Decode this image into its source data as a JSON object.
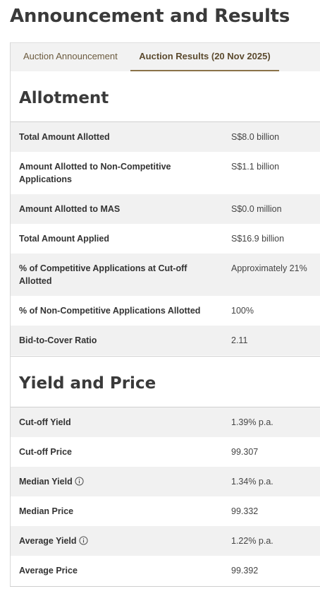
{
  "page": {
    "title": "Announcement and Results"
  },
  "tabs": [
    {
      "label": "Auction Announcement",
      "active": false
    },
    {
      "label": "Auction Results (20 Nov 2025)",
      "active": true
    }
  ],
  "allotment": {
    "heading": "Allotment",
    "rows": [
      {
        "label": "Total Amount Allotted",
        "value": "S$8.0 billion"
      },
      {
        "label": "Amount Allotted to Non-Competitive Applications",
        "value": "S$1.1 billion"
      },
      {
        "label": "Amount Allotted to MAS",
        "value": "S$0.0 million"
      },
      {
        "label": "Total Amount Applied",
        "value": "S$16.9 billion"
      },
      {
        "label": "% of Competitive Applications at Cut-off Allotted",
        "value": "Approximately 21%"
      },
      {
        "label": "% of Non-Competitive Applications Allotted",
        "value": "100%"
      },
      {
        "label": "Bid-to-Cover Ratio",
        "value": "2.11"
      }
    ]
  },
  "yield_price": {
    "heading": "Yield and Price",
    "rows": [
      {
        "label": "Cut-off Yield",
        "value": "1.39% p.a."
      },
      {
        "label": "Cut-off Price",
        "value": "99.307"
      },
      {
        "label": "Median Yield",
        "value": "1.34% p.a.",
        "icon": "info-icon"
      },
      {
        "label": "Median Price",
        "value": "99.332"
      },
      {
        "label": "Average Yield",
        "value": "1.22% p.a.",
        "icon": "info-icon"
      },
      {
        "label": "Average Price",
        "value": "99.392"
      }
    ]
  },
  "colors": {
    "active_tab_underline": "#8a7248",
    "tab_text": "#6b5a3e",
    "row_shade": "#f1f1f1"
  }
}
